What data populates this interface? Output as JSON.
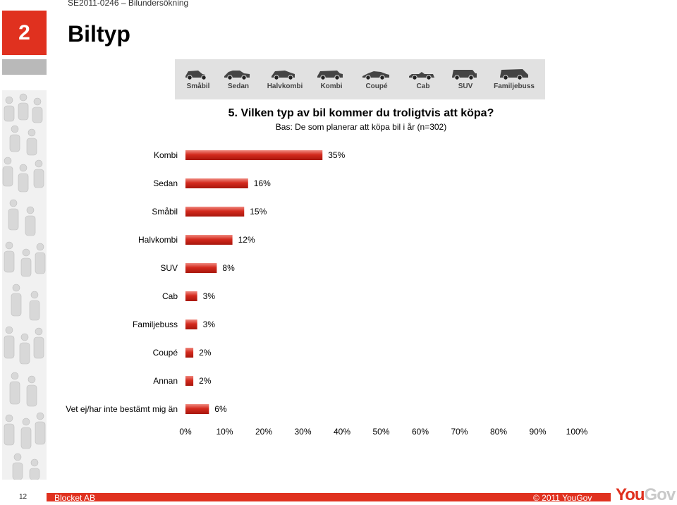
{
  "header": {
    "report_ref": "SE2011-0246 – Bilundersökning"
  },
  "section": {
    "number": "2",
    "title": "Biltyp"
  },
  "car_types": [
    {
      "label": "Småbil",
      "icon": "small-car-icon"
    },
    {
      "label": "Sedan",
      "icon": "sedan-icon"
    },
    {
      "label": "Halvkombi",
      "icon": "hatchback-icon"
    },
    {
      "label": "Kombi",
      "icon": "station-wagon-icon"
    },
    {
      "label": "Coupé",
      "icon": "coupe-icon"
    },
    {
      "label": "Cab",
      "icon": "convertible-icon"
    },
    {
      "label": "SUV",
      "icon": "suv-icon"
    },
    {
      "label": "Familjebuss",
      "icon": "minivan-icon"
    }
  ],
  "chart_data": {
    "type": "bar",
    "orientation": "horizontal",
    "title": "5. Vilken typ av bil kommer du troligtvis att köpa?",
    "subtitle": "Bas: De som planerar att köpa bil i år (n=302)",
    "categories": [
      "Kombi",
      "Sedan",
      "Småbil",
      "Halvkombi",
      "SUV",
      "Cab",
      "Familjebuss",
      "Coupé",
      "Annan",
      "Vet ej/har inte bestämt mig än"
    ],
    "values": [
      35,
      16,
      15,
      12,
      8,
      3,
      3,
      2,
      2,
      6
    ],
    "value_labels": [
      "35%",
      "16%",
      "15%",
      "12%",
      "8%",
      "3%",
      "3%",
      "2%",
      "2%",
      "6%"
    ],
    "xlim": [
      0,
      100
    ],
    "x_ticks": [
      "0%",
      "10%",
      "20%",
      "30%",
      "40%",
      "50%",
      "60%",
      "70%",
      "80%",
      "90%",
      "100%"
    ],
    "bar_color": "#d42a1e",
    "grid": false
  },
  "footer": {
    "page": "12",
    "left": "Blocket AB",
    "right": "© 2011 YouGov",
    "logo_you": "You",
    "logo_gov": "Gov"
  },
  "colors": {
    "accent": "#e0311f",
    "grey": "#b9b9b9"
  }
}
